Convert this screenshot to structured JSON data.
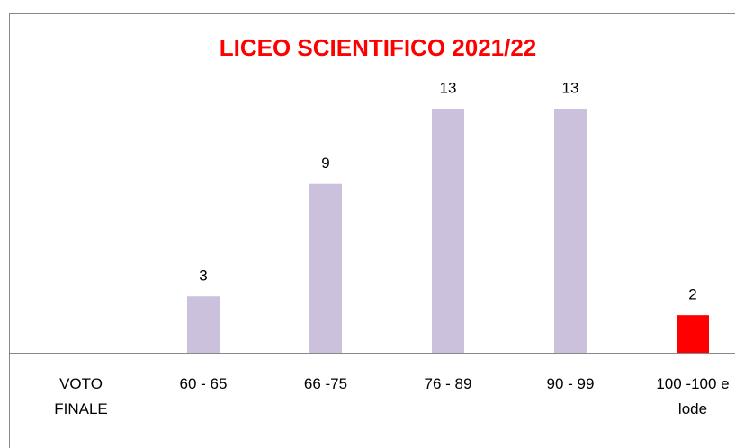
{
  "chart_data": {
    "type": "bar",
    "title": "LICEO SCIENTIFICO 2021/22",
    "categories": [
      "VOTO FINALE",
      "60 - 65",
      "66 -75",
      "76 - 89",
      "90 - 99",
      "100 -100 e lode"
    ],
    "values": [
      null,
      3,
      9,
      13,
      13,
      2
    ],
    "colors": [
      "#ccc1dc",
      "#ccc1dc",
      "#ccc1dc",
      "#ccc1dc",
      "#ccc1dc",
      "#ff0000"
    ]
  }
}
